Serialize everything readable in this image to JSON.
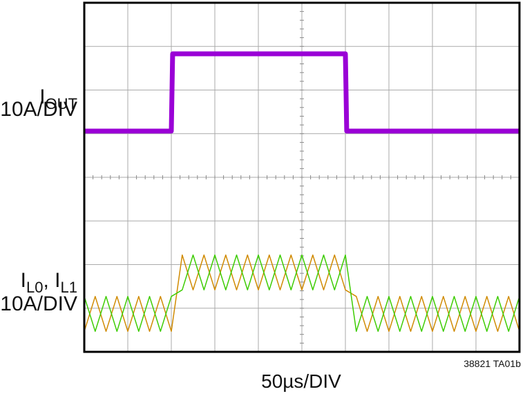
{
  "chart_data": {
    "type": "line",
    "xlim": [
      0,
      10
    ],
    "ylim": [
      0,
      8
    ],
    "grid": true,
    "x_label": "50µs/DIV",
    "footnote": "38821 TA01b",
    "trace_labels": [
      {
        "parts": [
          "I",
          "OUT"
        ],
        "scale": "10A/DIV"
      },
      {
        "parts": [
          "I",
          "L0",
          ", I",
          "L1"
        ],
        "scale": "10A/DIV"
      }
    ],
    "series": [
      {
        "color": "#9a00d6",
        "width": 7,
        "x": [
          0,
          2,
          2.03,
          6,
          6.03,
          10
        ],
        "values": [
          5.06,
          5.06,
          6.83,
          6.83,
          5.06,
          5.06
        ]
      },
      {
        "color": "#d08a00",
        "width": 1.5,
        "x": [
          0,
          0.25,
          0.5,
          0.75,
          1,
          1.25,
          1.5,
          1.75,
          2,
          2.25,
          2.5,
          2.75,
          3,
          3.25,
          3.5,
          3.75,
          4,
          4.25,
          4.5,
          4.75,
          5,
          5.25,
          5.5,
          5.75,
          6,
          6.25,
          6.5,
          6.75,
          7,
          7.25,
          7.5,
          7.75,
          8,
          8.25,
          8.5,
          8.75,
          9,
          9.25,
          9.5,
          9.75,
          10
        ],
        "values": [
          0.47,
          1.27,
          0.47,
          1.27,
          0.47,
          1.27,
          0.47,
          1.27,
          0.47,
          2.22,
          1.42,
          2.22,
          1.42,
          2.22,
          1.42,
          2.22,
          1.42,
          2.22,
          1.42,
          2.22,
          1.42,
          2.22,
          1.42,
          2.22,
          1.42,
          1.27,
          0.47,
          1.27,
          0.47,
          1.27,
          0.47,
          1.27,
          0.47,
          1.27,
          0.47,
          1.27,
          0.47,
          1.27,
          0.47,
          1.27,
          0.47
        ]
      },
      {
        "color": "#3ccc00",
        "width": 1.5,
        "x": [
          0,
          0.25,
          0.5,
          0.75,
          1,
          1.25,
          1.5,
          1.75,
          2,
          2.25,
          2.5,
          2.75,
          3,
          3.25,
          3.5,
          3.75,
          4,
          4.25,
          4.5,
          4.75,
          5,
          5.25,
          5.5,
          5.75,
          6,
          6.25,
          6.5,
          6.75,
          7,
          7.25,
          7.5,
          7.75,
          8,
          8.25,
          8.5,
          8.75,
          9,
          9.25,
          9.5,
          9.75,
          10
        ],
        "values": [
          1.27,
          0.47,
          1.27,
          0.47,
          1.27,
          0.47,
          1.27,
          0.47,
          1.27,
          1.42,
          2.22,
          1.42,
          2.22,
          1.42,
          2.22,
          1.42,
          2.22,
          1.42,
          2.22,
          1.42,
          2.22,
          1.42,
          2.22,
          1.42,
          2.22,
          0.47,
          1.27,
          0.47,
          1.27,
          0.47,
          1.27,
          0.47,
          1.27,
          0.47,
          1.27,
          0.47,
          1.27,
          0.47,
          1.27,
          0.47,
          1.27
        ]
      }
    ]
  }
}
